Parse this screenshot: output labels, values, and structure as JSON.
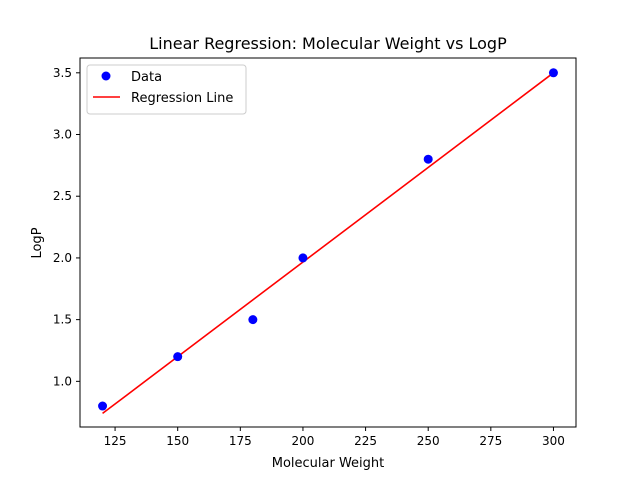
{
  "chart_data": {
    "type": "scatter",
    "title": "Linear Regression: Molecular Weight vs LogP",
    "xlabel": "Molecular Weight",
    "ylabel": "LogP",
    "xlim": [
      111,
      309
    ],
    "ylim": [
      0.63,
      3.62
    ],
    "xticks": [
      125,
      150,
      175,
      200,
      225,
      250,
      275,
      300
    ],
    "yticks": [
      1.0,
      1.5,
      2.0,
      2.5,
      3.0,
      3.5
    ],
    "xtick_labels": [
      "125",
      "150",
      "175",
      "200",
      "225",
      "250",
      "275",
      "300"
    ],
    "ytick_labels": [
      "1.0",
      "1.5",
      "2.0",
      "2.5",
      "3.0",
      "3.5"
    ],
    "grid": false,
    "legend_position": "top-left",
    "series": [
      {
        "name": "Data",
        "kind": "scatter",
        "color": "#0000ff",
        "x": [
          120,
          150,
          180,
          200,
          250,
          300
        ],
        "y": [
          0.8,
          1.2,
          1.5,
          2.0,
          2.8,
          3.5
        ]
      },
      {
        "name": "Regression Line",
        "kind": "line",
        "color": "#ff0000",
        "x": [
          120,
          300
        ],
        "y": [
          0.74,
          3.5
        ]
      }
    ]
  }
}
